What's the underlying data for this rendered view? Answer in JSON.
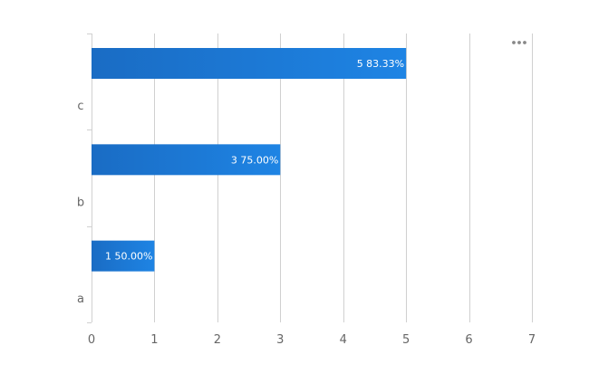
{
  "chart_data": {
    "type": "bar",
    "orientation": "horizontal",
    "categories": [
      "a",
      "b",
      "c"
    ],
    "series": [
      {
        "values": [
          1,
          3,
          5
        ],
        "labels": [
          "1  50.00%",
          "3  75.00%",
          "5  83.33%"
        ]
      }
    ],
    "xlim": [
      0,
      7
    ],
    "x_ticks": [
      "0",
      "1",
      "2",
      "3",
      "4",
      "5",
      "6",
      "7"
    ],
    "grid": "vertical",
    "bar_color": "#1e7bd6",
    "bar_color_dark": "#1a6cc4",
    "title": "",
    "xlabel": "",
    "ylabel": ""
  },
  "toolbar": {
    "menu_icon": "more-horizontal-icon"
  }
}
